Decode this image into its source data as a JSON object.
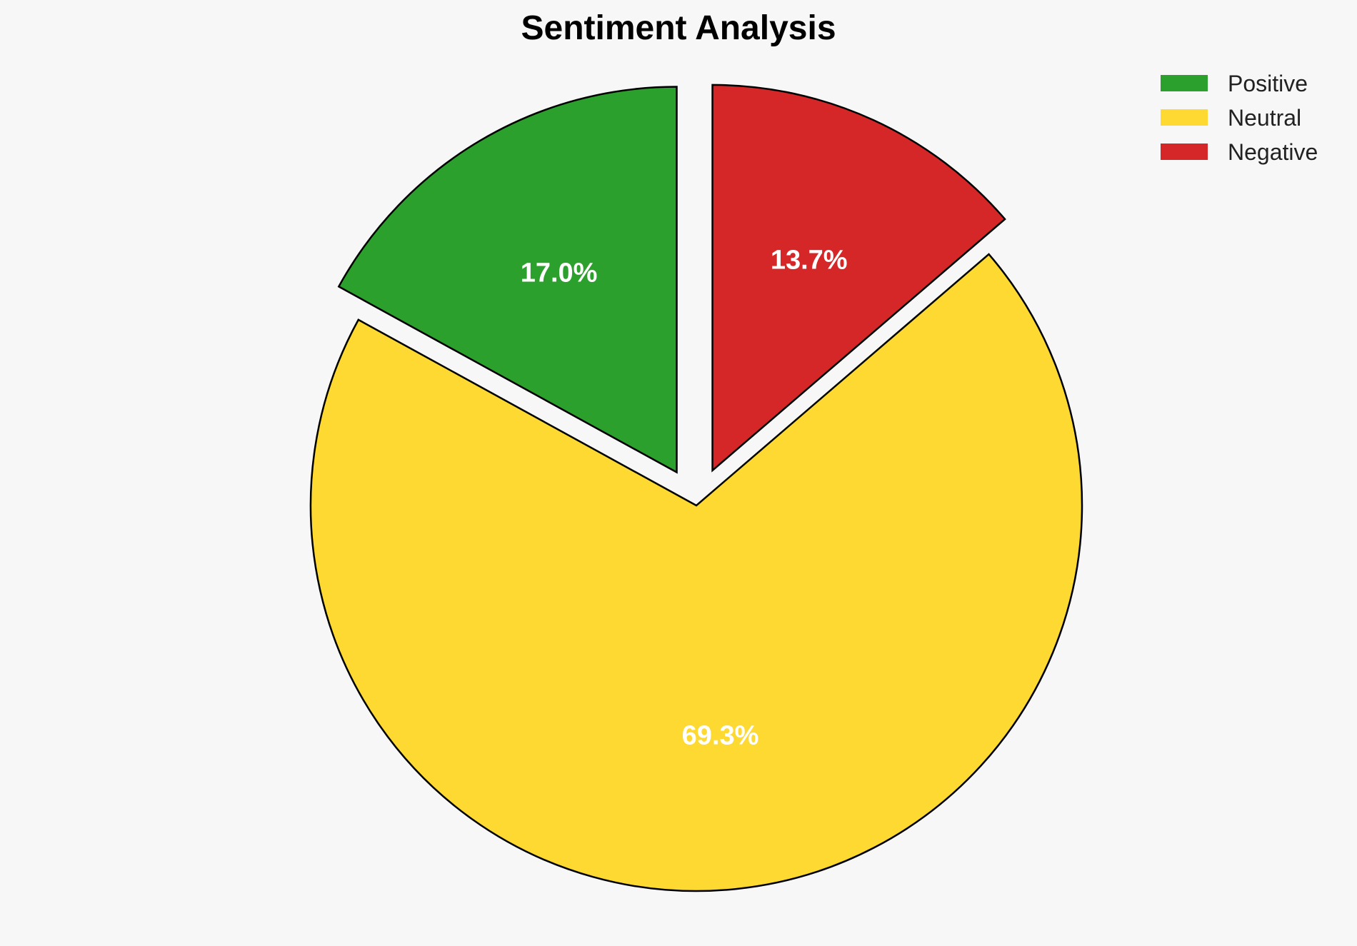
{
  "chart_data": {
    "type": "pie",
    "title": "Sentiment Analysis",
    "start_angle_deg": 90,
    "direction": "counterclockwise",
    "legend_position": "top-right",
    "slices": [
      {
        "label": "Positive",
        "value": 17.0,
        "display": "17.0%",
        "color": "#2ca02c",
        "exploded": true
      },
      {
        "label": "Neutral",
        "value": 69.3,
        "display": "69.3%",
        "color": "#fdd931",
        "exploded": false
      },
      {
        "label": "Negative",
        "value": 13.7,
        "display": "13.7%",
        "color": "#d62728",
        "exploded": true
      }
    ]
  }
}
